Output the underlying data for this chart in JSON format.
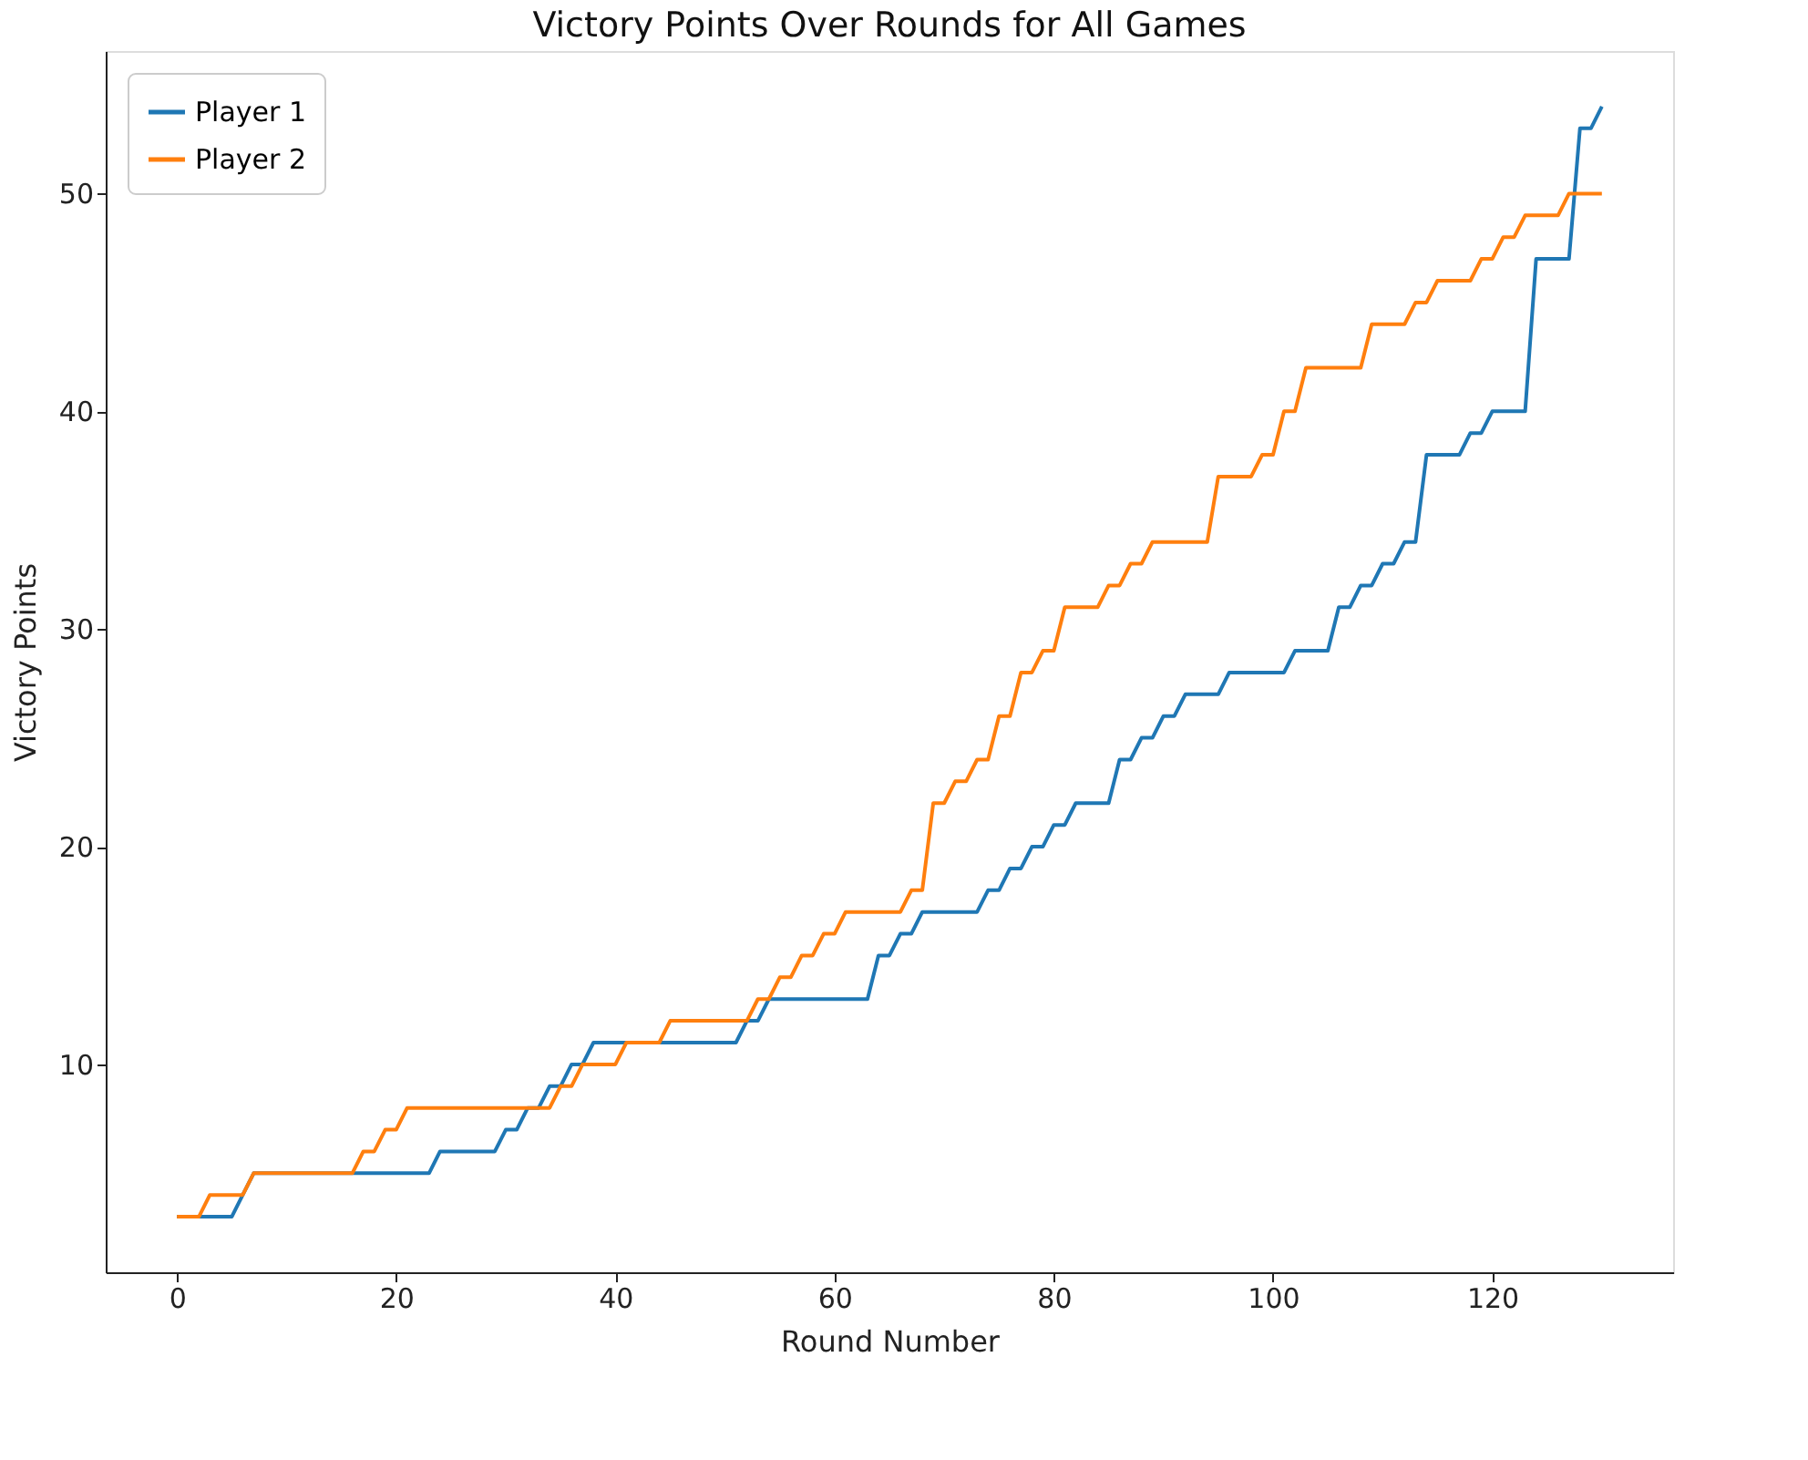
{
  "chart_data": {
    "type": "line",
    "title": "Victory Points Over Rounds for All Games",
    "xlabel": "Round Number",
    "ylabel": "Victory Points",
    "xlim": [
      -6.5,
      136.5
    ],
    "xticks": [
      0,
      20,
      40,
      60,
      80,
      100,
      120
    ],
    "ylim": [
      0.45,
      56.55
    ],
    "yticks": [
      10,
      20,
      30,
      40,
      50
    ],
    "grid": false,
    "legend": "top left",
    "series": [
      {
        "name": "Player 1",
        "color": "#1f77b4",
        "x": [
          0,
          5,
          6,
          7,
          23,
          24,
          29,
          30,
          31,
          32,
          33,
          34,
          35,
          36,
          37,
          38,
          51,
          52,
          53,
          54,
          63,
          64,
          65,
          66,
          67,
          68,
          73,
          74,
          75,
          76,
          77,
          78,
          79,
          80,
          81,
          82,
          85,
          86,
          87,
          88,
          89,
          90,
          91,
          92,
          95,
          96,
          101,
          102,
          105,
          106,
          107,
          108,
          109,
          110,
          111,
          112,
          113,
          114,
          117,
          118,
          119,
          120,
          123,
          124,
          127,
          128,
          129,
          130
        ],
        "values": [
          3,
          3,
          4,
          5,
          5,
          6,
          6,
          7,
          7,
          8,
          8,
          9,
          9,
          10,
          10,
          11,
          11,
          12,
          12,
          13,
          13,
          15,
          15,
          16,
          16,
          17,
          17,
          18,
          18,
          19,
          19,
          20,
          20,
          21,
          21,
          22,
          22,
          24,
          24,
          25,
          25,
          26,
          26,
          27,
          27,
          28,
          28,
          29,
          29,
          31,
          31,
          32,
          32,
          33,
          33,
          34,
          34,
          38,
          38,
          39,
          39,
          40,
          40,
          47,
          47,
          53,
          53,
          54
        ]
      },
      {
        "name": "Player 2",
        "color": "#ff7f0e",
        "x": [
          0,
          2,
          3,
          6,
          7,
          16,
          17,
          18,
          19,
          20,
          21,
          34,
          35,
          36,
          37,
          40,
          41,
          44,
          45,
          52,
          53,
          54,
          55,
          56,
          57,
          58,
          59,
          60,
          61,
          66,
          67,
          68,
          69,
          70,
          71,
          72,
          73,
          74,
          75,
          76,
          77,
          78,
          79,
          80,
          81,
          84,
          85,
          86,
          87,
          88,
          89,
          94,
          95,
          98,
          99,
          100,
          101,
          102,
          103,
          108,
          109,
          112,
          113,
          114,
          115,
          118,
          119,
          120,
          121,
          122,
          123,
          126,
          127,
          130
        ],
        "values": [
          3,
          3,
          4,
          4,
          5,
          5,
          6,
          6,
          7,
          7,
          8,
          8,
          9,
          9,
          10,
          10,
          11,
          11,
          12,
          12,
          13,
          13,
          14,
          14,
          15,
          15,
          16,
          16,
          17,
          17,
          18,
          18,
          22,
          22,
          23,
          23,
          24,
          24,
          26,
          26,
          28,
          28,
          29,
          29,
          31,
          31,
          32,
          32,
          33,
          33,
          34,
          34,
          37,
          37,
          38,
          38,
          40,
          40,
          42,
          42,
          44,
          44,
          45,
          45,
          46,
          46,
          47,
          47,
          48,
          48,
          49,
          49,
          50,
          50
        ]
      }
    ]
  }
}
